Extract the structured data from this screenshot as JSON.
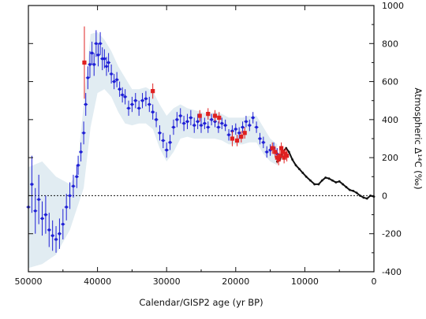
{
  "chart_data": {
    "type": "scatter",
    "orientation": "mirrored",
    "xlabel": "Calendar/GISP2 age (yr BP)",
    "ylabel": "Atmospheric Δ¹⁴C (‰)",
    "xlim": [
      0,
      50000
    ],
    "ylim": [
      -400,
      1000
    ],
    "x_reversed": true,
    "y_axis_side": "right",
    "x_ticks": [
      0,
      10000,
      20000,
      30000,
      40000,
      50000
    ],
    "y_ticks": [
      -400,
      -200,
      0,
      200,
      400,
      600,
      800,
      1000
    ],
    "reference_line": {
      "y": 0,
      "style": "dotted"
    },
    "grid": false,
    "colors": {
      "blue_series": "#1f1fd6",
      "red_series": "#e02020",
      "black_series": "#111111",
      "envelope": "#dce9f0"
    },
    "series": [
      {
        "key": "blue",
        "marker": "dot-with-errorbar",
        "points": [
          [
            50000,
            -60,
            170
          ],
          [
            49500,
            60,
            150
          ],
          [
            49000,
            -80,
            120
          ],
          [
            48500,
            -20,
            130
          ],
          [
            48000,
            -120,
            90
          ],
          [
            47500,
            -100,
            100
          ],
          [
            47000,
            -180,
            90
          ],
          [
            46500,
            -210,
            80
          ],
          [
            46000,
            -230,
            70
          ],
          [
            45500,
            -200,
            80
          ],
          [
            45000,
            -150,
            80
          ],
          [
            44500,
            -60,
            70
          ],
          [
            44000,
            0,
            70
          ],
          [
            43500,
            50,
            60
          ],
          [
            43000,
            100,
            60
          ],
          [
            42800,
            160,
            50
          ],
          [
            42400,
            230,
            50
          ],
          [
            42000,
            330,
            60
          ],
          [
            41700,
            480,
            60
          ],
          [
            41400,
            620,
            60
          ],
          [
            41100,
            690,
            70
          ],
          [
            40800,
            750,
            60
          ],
          [
            40500,
            690,
            60
          ],
          [
            40200,
            800,
            70
          ],
          [
            39900,
            740,
            60
          ],
          [
            39600,
            800,
            60
          ],
          [
            39300,
            720,
            60
          ],
          [
            39000,
            720,
            50
          ],
          [
            38700,
            680,
            50
          ],
          [
            38400,
            700,
            50
          ],
          [
            38000,
            640,
            50
          ],
          [
            37600,
            600,
            40
          ],
          [
            37200,
            610,
            40
          ],
          [
            36800,
            560,
            40
          ],
          [
            36400,
            530,
            40
          ],
          [
            36000,
            520,
            40
          ],
          [
            35500,
            460,
            40
          ],
          [
            35000,
            480,
            40
          ],
          [
            34500,
            500,
            40
          ],
          [
            34000,
            460,
            40
          ],
          [
            33500,
            500,
            40
          ],
          [
            33000,
            510,
            40
          ],
          [
            32500,
            480,
            40
          ],
          [
            32000,
            440,
            40
          ],
          [
            31500,
            400,
            40
          ],
          [
            31000,
            330,
            40
          ],
          [
            30500,
            290,
            40
          ],
          [
            30000,
            240,
            40
          ],
          [
            29500,
            280,
            40
          ],
          [
            29000,
            360,
            40
          ],
          [
            28500,
            400,
            40
          ],
          [
            28000,
            420,
            40
          ],
          [
            27500,
            380,
            40
          ],
          [
            27000,
            390,
            40
          ],
          [
            26500,
            410,
            40
          ],
          [
            26000,
            370,
            40
          ],
          [
            25500,
            390,
            40
          ],
          [
            25000,
            370,
            40
          ],
          [
            24500,
            380,
            30
          ],
          [
            24000,
            360,
            30
          ],
          [
            23500,
            400,
            30
          ],
          [
            23000,
            390,
            30
          ],
          [
            22500,
            360,
            30
          ],
          [
            22000,
            380,
            30
          ],
          [
            21500,
            370,
            30
          ],
          [
            21000,
            320,
            30
          ],
          [
            20500,
            340,
            30
          ],
          [
            20000,
            350,
            30
          ],
          [
            19500,
            330,
            30
          ],
          [
            19000,
            360,
            30
          ],
          [
            18500,
            390,
            30
          ],
          [
            18000,
            370,
            30
          ],
          [
            17500,
            410,
            30
          ],
          [
            17000,
            360,
            30
          ],
          [
            16500,
            300,
            30
          ],
          [
            16000,
            280,
            30
          ],
          [
            15500,
            230,
            30
          ],
          [
            15000,
            240,
            30
          ],
          [
            14500,
            250,
            30
          ],
          [
            14000,
            220,
            30
          ]
        ]
      },
      {
        "key": "red",
        "marker": "square-with-errorbar",
        "points": [
          [
            41900,
            700,
            190
          ],
          [
            32000,
            550,
            40
          ],
          [
            25200,
            420,
            30
          ],
          [
            24000,
            430,
            30
          ],
          [
            23000,
            420,
            30
          ],
          [
            22400,
            410,
            30
          ],
          [
            20500,
            300,
            40
          ],
          [
            19800,
            290,
            30
          ],
          [
            19200,
            310,
            30
          ],
          [
            18700,
            330,
            30
          ],
          [
            14700,
            250,
            30
          ],
          [
            14300,
            230,
            30
          ],
          [
            14000,
            200,
            30
          ],
          [
            13800,
            190,
            30
          ],
          [
            13600,
            210,
            30
          ],
          [
            13400,
            250,
            30
          ],
          [
            13200,
            230,
            30
          ],
          [
            13000,
            200,
            30
          ],
          [
            12800,
            220,
            30
          ],
          [
            12600,
            210,
            30
          ]
        ]
      },
      {
        "key": "black",
        "marker": "line",
        "points": [
          [
            14000,
            180
          ],
          [
            13600,
            190
          ],
          [
            13200,
            230
          ],
          [
            12700,
            250
          ],
          [
            12300,
            230
          ],
          [
            11800,
            190
          ],
          [
            11300,
            160
          ],
          [
            10800,
            140
          ],
          [
            10300,
            120
          ],
          [
            9800,
            100
          ],
          [
            9200,
            80
          ],
          [
            8600,
            60
          ],
          [
            8000,
            60
          ],
          [
            7500,
            80
          ],
          [
            7000,
            95
          ],
          [
            6500,
            90
          ],
          [
            6000,
            80
          ],
          [
            5500,
            70
          ],
          [
            5000,
            75
          ],
          [
            4500,
            60
          ],
          [
            4000,
            45
          ],
          [
            3500,
            30
          ],
          [
            3000,
            25
          ],
          [
            2500,
            15
          ],
          [
            2000,
            0
          ],
          [
            1500,
            -10
          ],
          [
            1000,
            -15
          ],
          [
            500,
            0
          ],
          [
            0,
            -5
          ]
        ]
      }
    ],
    "envelope": [
      [
        50000,
        -380,
        150
      ],
      [
        48000,
        -360,
        180
      ],
      [
        46000,
        -310,
        100
      ],
      [
        44000,
        -180,
        60
      ],
      [
        43000,
        -70,
        120
      ],
      [
        42000,
        40,
        480
      ],
      [
        41000,
        360,
        850
      ],
      [
        40000,
        540,
        860
      ],
      [
        39000,
        560,
        820
      ],
      [
        38000,
        520,
        760
      ],
      [
        37000,
        440,
        680
      ],
      [
        36000,
        380,
        620
      ],
      [
        35000,
        370,
        560
      ],
      [
        34000,
        380,
        560
      ],
      [
        33000,
        380,
        570
      ],
      [
        32000,
        350,
        550
      ],
      [
        31000,
        250,
        480
      ],
      [
        30000,
        180,
        420
      ],
      [
        29000,
        230,
        460
      ],
      [
        28000,
        300,
        480
      ],
      [
        27000,
        310,
        460
      ],
      [
        26000,
        300,
        450
      ],
      [
        25000,
        300,
        440
      ],
      [
        24000,
        300,
        430
      ],
      [
        23000,
        300,
        440
      ],
      [
        22000,
        290,
        430
      ],
      [
        21000,
        270,
        410
      ],
      [
        20000,
        270,
        410
      ],
      [
        19000,
        270,
        410
      ],
      [
        18000,
        280,
        420
      ],
      [
        17000,
        280,
        420
      ],
      [
        16000,
        220,
        360
      ],
      [
        15000,
        180,
        300
      ],
      [
        14000,
        160,
        270
      ]
    ]
  }
}
